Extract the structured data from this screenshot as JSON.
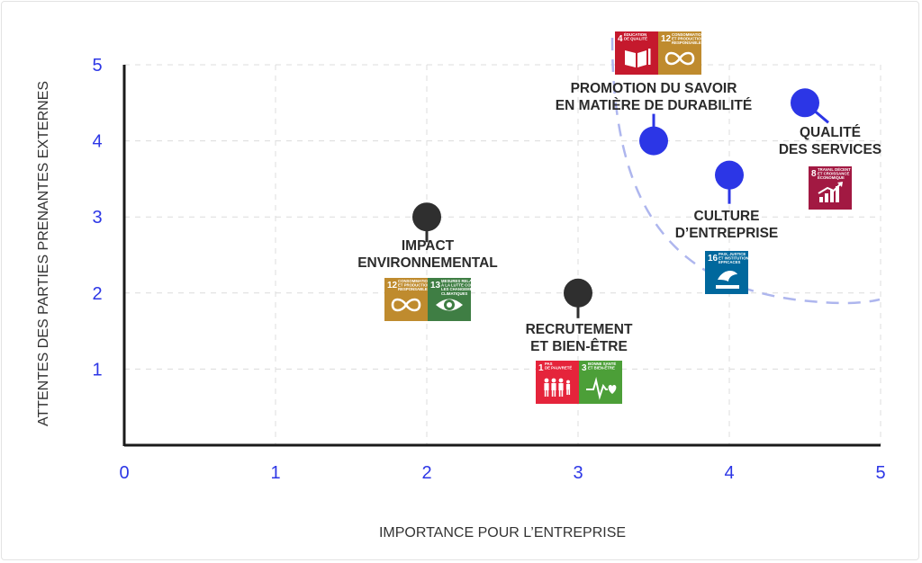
{
  "chart_data": {
    "type": "scatter",
    "title": "",
    "xlabel": "IMPORTANCE POUR L’ENTREPRISE",
    "ylabel": "ATTENTES DES PARTIES PRENANTES EXTERNES",
    "xlim": [
      0,
      5
    ],
    "ylim": [
      0,
      5
    ],
    "x_ticks": [
      "0",
      "1",
      "2",
      "3",
      "4",
      "5"
    ],
    "y_ticks": [
      "1",
      "2",
      "3",
      "4",
      "5"
    ],
    "grid": true,
    "colors": {
      "priority": "#2c36e6",
      "other": "#2f2f2f",
      "tick": "#2c36e6",
      "curve": "#aeb6ee"
    },
    "points": [
      {
        "label": [
          "PROMOTION DU SAVOIR",
          "EN MATIÈRE DE DURABILITÉ"
        ],
        "x": 3.5,
        "y": 4.0,
        "priority": true,
        "sdgs": [
          {
            "num": "4",
            "text": [
              "ÉDUCATION",
              "DE QUALITÉ"
            ],
            "color": "#c5192d",
            "icon": "book-icon"
          },
          {
            "num": "12",
            "text": [
              "CONSOMMATION",
              "ET PRODUCTION",
              "RESPONSABLES"
            ],
            "color": "#bf8b2e",
            "icon": "infinity-icon"
          }
        ]
      },
      {
        "label": [
          "QUALITÉ",
          "DES SERVICES"
        ],
        "x": 4.5,
        "y": 4.5,
        "priority": true,
        "sdgs": [
          {
            "num": "8",
            "text": [
              "TRAVAIL DÉCENT",
              "ET CROISSANCE",
              "ÉCONOMIQUE"
            ],
            "color": "#a21942",
            "icon": "growth-chart-icon"
          }
        ]
      },
      {
        "label": [
          "CULTURE",
          "D’ENTREPRISE"
        ],
        "x": 4.0,
        "y": 3.55,
        "priority": true,
        "sdgs": [
          {
            "num": "16",
            "text": [
              "PAIX, JUSTICE",
              "ET INSTITUTIONS",
              "EFFICACES"
            ],
            "color": "#00689d",
            "icon": "dove-icon"
          }
        ]
      },
      {
        "label": [
          "IMPACT",
          "ENVIRONNEMENTAL"
        ],
        "x": 2.0,
        "y": 3.0,
        "priority": false,
        "sdgs": [
          {
            "num": "12",
            "text": [
              "CONSOMMATION",
              "ET PRODUCTION",
              "RESPONSABLES"
            ],
            "color": "#bf8b2e",
            "icon": "infinity-icon"
          },
          {
            "num": "13",
            "text": [
              "MESURES RELATIVES",
              "À LA LUTTE CONTRE",
              "LES CHANGEMENTS",
              "CLIMATIQUES"
            ],
            "color": "#3f7e44",
            "icon": "eye-globe-icon"
          }
        ]
      },
      {
        "label": [
          "RECRUTEMENT",
          "ET BIEN-ÊTRE"
        ],
        "x": 3.0,
        "y": 2.0,
        "priority": false,
        "sdgs": [
          {
            "num": "1",
            "text": [
              "PAS",
              "DE PAUVRETÉ"
            ],
            "color": "#e5243b",
            "icon": "family-icon"
          },
          {
            "num": "3",
            "text": [
              "BONNE SANTÉ",
              "ET BIEN-ÊTRE"
            ],
            "color": "#4c9f38",
            "icon": "heartbeat-icon"
          }
        ]
      }
    ]
  }
}
